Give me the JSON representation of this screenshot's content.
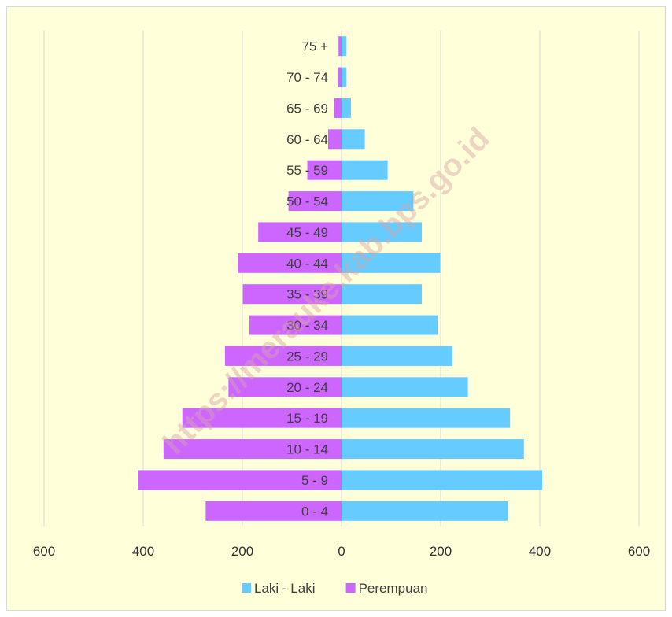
{
  "chart_data": {
    "type": "bar",
    "orientation": "horizontal",
    "title": "",
    "xlabel": "",
    "ylabel": "",
    "categories": [
      "0 - 4",
      "5 - 9",
      "10 - 14",
      "15 - 19",
      "20 - 24",
      "25 - 29",
      "30 - 34",
      "35 - 39",
      "40 - 44",
      "45 - 49",
      "50 - 54",
      "55 - 59",
      "60 - 64",
      "65 - 69",
      "70 - 74",
      "75 +"
    ],
    "series": [
      {
        "name": "Laki - Laki",
        "color": "#66CCFF",
        "side": "right",
        "values": [
          335,
          405,
          368,
          340,
          255,
          224,
          194,
          162,
          199,
          162,
          145,
          93,
          47,
          19,
          10,
          10
        ]
      },
      {
        "name": "Perempuan",
        "color": "#CC66FF",
        "side": "left",
        "values": [
          274,
          411,
          359,
          321,
          228,
          235,
          186,
          199,
          209,
          168,
          107,
          69,
          27,
          15,
          8,
          6
        ]
      }
    ],
    "xlim": [
      -600,
      600
    ],
    "xticks": [
      -600,
      -400,
      -200,
      0,
      200,
      400,
      600
    ],
    "xtick_labels": [
      "600",
      "400",
      "200",
      "0",
      "200",
      "400",
      "600"
    ],
    "grid": "vertical",
    "legend": "bottom-center",
    "background": "#FFFFD9"
  },
  "watermark": "https://merauke.kab.bps.go.id"
}
